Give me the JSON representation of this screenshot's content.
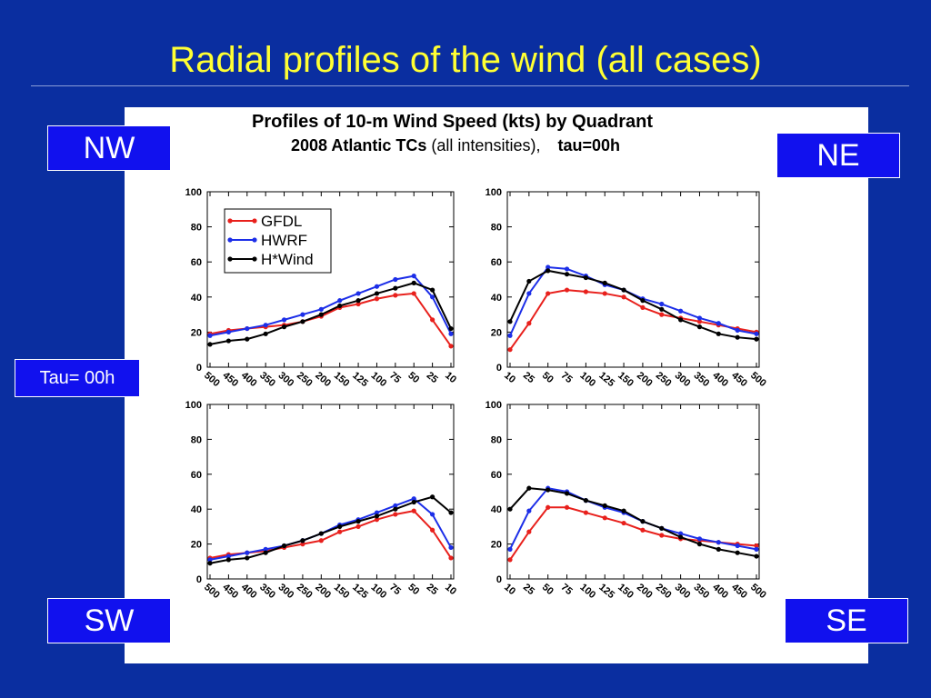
{
  "slide_title": "Radial profiles of the wind (all cases)",
  "figure": {
    "title_line1": "Profiles of 10-m Wind Speed (kts) by Quadrant",
    "title_line2_bold": "2008 Atlantic TCs",
    "title_line2_normal": "(all intensities),",
    "title_line2_tau": "tau=00h"
  },
  "labels": {
    "nw": "NW",
    "ne": "NE",
    "sw": "SW",
    "se": "SE",
    "tau": "Tau= 00h"
  },
  "colors": {
    "GFDL": "#e8201c",
    "HWRF": "#1c2ee8",
    "H*Wind": "#000000"
  },
  "chart_data": [
    {
      "type": "line",
      "quadrant": "NW",
      "x_direction": "decreasing",
      "x_ticks": [
        500,
        450,
        400,
        350,
        300,
        250,
        200,
        150,
        125,
        100,
        75,
        50,
        25,
        10
      ],
      "ylim": [
        0,
        100
      ],
      "y_ticks": [
        0,
        20,
        40,
        60,
        80,
        100
      ],
      "legend": true,
      "series": [
        {
          "name": "GFDL",
          "x": [
            500,
            450,
            400,
            350,
            300,
            250,
            200,
            150,
            125,
            100,
            75,
            50,
            25,
            10
          ],
          "y": [
            19,
            21,
            22,
            23,
            24,
            26,
            29,
            34,
            36,
            39,
            41,
            42,
            27,
            12
          ]
        },
        {
          "name": "HWRF",
          "x": [
            500,
            450,
            400,
            350,
            300,
            250,
            200,
            150,
            125,
            100,
            75,
            50,
            25,
            10
          ],
          "y": [
            18,
            20,
            22,
            24,
            27,
            30,
            33,
            38,
            42,
            46,
            50,
            52,
            40,
            19
          ]
        },
        {
          "name": "H*Wind",
          "x": [
            500,
            450,
            400,
            350,
            300,
            250,
            200,
            150,
            125,
            100,
            75,
            50,
            25,
            10
          ],
          "y": [
            13,
            15,
            16,
            19,
            23,
            26,
            30,
            35,
            38,
            42,
            45,
            48,
            44,
            22
          ]
        }
      ]
    },
    {
      "type": "line",
      "quadrant": "NE",
      "x_direction": "increasing",
      "x_ticks": [
        10,
        25,
        50,
        75,
        100,
        125,
        150,
        200,
        250,
        300,
        350,
        400,
        450,
        500
      ],
      "ylim": [
        0,
        100
      ],
      "y_ticks": [
        0,
        20,
        40,
        60,
        80,
        100
      ],
      "legend": false,
      "series": [
        {
          "name": "GFDL",
          "x": [
            10,
            25,
            50,
            75,
            100,
            125,
            150,
            200,
            250,
            300,
            350,
            400,
            450,
            500
          ],
          "y": [
            10,
            25,
            42,
            44,
            43,
            42,
            40,
            34,
            30,
            28,
            26,
            24,
            22,
            20
          ]
        },
        {
          "name": "HWRF",
          "x": [
            10,
            25,
            50,
            75,
            100,
            125,
            150,
            200,
            250,
            300,
            350,
            400,
            450,
            500
          ],
          "y": [
            18,
            42,
            57,
            56,
            52,
            47,
            44,
            39,
            36,
            32,
            28,
            25,
            21,
            19
          ]
        },
        {
          "name": "H*Wind",
          "x": [
            10,
            25,
            50,
            75,
            100,
            125,
            150,
            200,
            250,
            300,
            350,
            400,
            450,
            500
          ],
          "y": [
            26,
            49,
            55,
            53,
            51,
            48,
            44,
            38,
            33,
            27,
            23,
            19,
            17,
            16
          ]
        }
      ]
    },
    {
      "type": "line",
      "quadrant": "SW",
      "x_direction": "decreasing",
      "x_ticks": [
        500,
        450,
        400,
        350,
        300,
        250,
        200,
        150,
        125,
        100,
        75,
        50,
        25,
        10
      ],
      "ylim": [
        0,
        100
      ],
      "y_ticks": [
        0,
        20,
        40,
        60,
        80,
        100
      ],
      "legend": false,
      "series": [
        {
          "name": "GFDL",
          "x": [
            500,
            450,
            400,
            350,
            300,
            250,
            200,
            150,
            125,
            100,
            75,
            50,
            25,
            10
          ],
          "y": [
            12,
            14,
            15,
            16,
            18,
            20,
            22,
            27,
            30,
            34,
            37,
            39,
            28,
            12
          ]
        },
        {
          "name": "HWRF",
          "x": [
            500,
            450,
            400,
            350,
            300,
            250,
            200,
            150,
            125,
            100,
            75,
            50,
            25,
            10
          ],
          "y": [
            11,
            13,
            15,
            17,
            19,
            22,
            26,
            31,
            34,
            38,
            42,
            46,
            37,
            18
          ]
        },
        {
          "name": "H*Wind",
          "x": [
            500,
            450,
            400,
            350,
            300,
            250,
            200,
            150,
            125,
            100,
            75,
            50,
            25,
            10
          ],
          "y": [
            9,
            11,
            12,
            15,
            19,
            22,
            26,
            30,
            33,
            36,
            40,
            44,
            47,
            38
          ]
        }
      ]
    },
    {
      "type": "line",
      "quadrant": "SE",
      "x_direction": "increasing",
      "x_ticks": [
        10,
        25,
        50,
        75,
        100,
        125,
        150,
        200,
        250,
        300,
        350,
        400,
        450,
        500
      ],
      "ylim": [
        0,
        100
      ],
      "y_ticks": [
        0,
        20,
        40,
        60,
        80,
        100
      ],
      "legend": false,
      "series": [
        {
          "name": "GFDL",
          "x": [
            10,
            25,
            50,
            75,
            100,
            125,
            150,
            200,
            250,
            300,
            350,
            400,
            450,
            500
          ],
          "y": [
            11,
            27,
            41,
            41,
            38,
            35,
            32,
            28,
            25,
            23,
            22,
            21,
            20,
            19
          ]
        },
        {
          "name": "HWRF",
          "x": [
            10,
            25,
            50,
            75,
            100,
            125,
            150,
            200,
            250,
            300,
            350,
            400,
            450,
            500
          ],
          "y": [
            17,
            39,
            52,
            50,
            45,
            41,
            38,
            33,
            29,
            26,
            23,
            21,
            19,
            17
          ]
        },
        {
          "name": "H*Wind",
          "x": [
            10,
            25,
            50,
            75,
            100,
            125,
            150,
            200,
            250,
            300,
            350,
            400,
            450,
            500
          ],
          "y": [
            40,
            52,
            51,
            49,
            45,
            42,
            39,
            33,
            29,
            24,
            20,
            17,
            15,
            13
          ]
        }
      ]
    }
  ]
}
